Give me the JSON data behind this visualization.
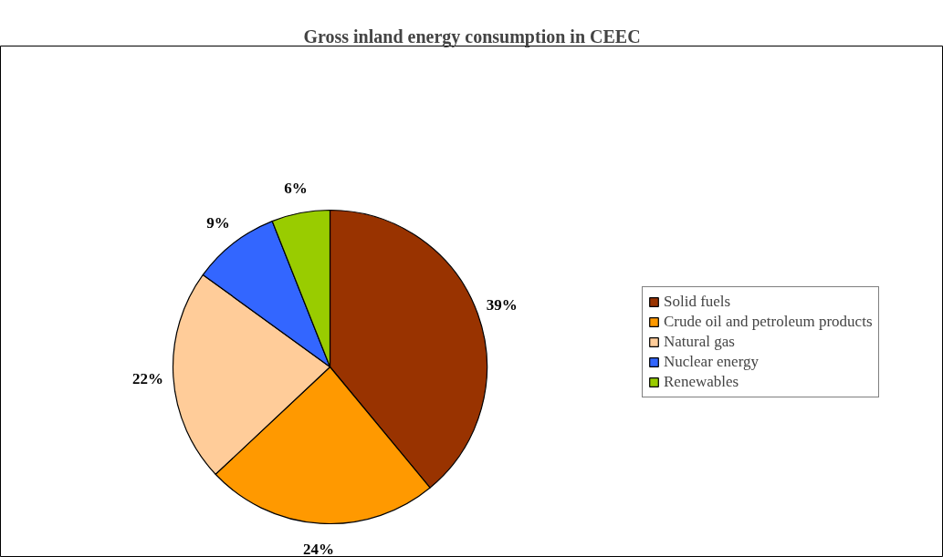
{
  "chart_data": {
    "type": "pie",
    "title": "Gross inland energy consumption in CEEC",
    "categories": [
      "Solid fuels",
      "Crude oil and petroleum products",
      "Natural gas",
      "Nuclear energy",
      "Renewables"
    ],
    "values": [
      39,
      24,
      22,
      9,
      6
    ],
    "colors": [
      "#993300",
      "#ff9900",
      "#ffcc99",
      "#3366ff",
      "#99cc00"
    ],
    "value_labels": [
      "39%",
      "24%",
      "22%",
      "9%",
      "6%"
    ],
    "legend": "right"
  }
}
